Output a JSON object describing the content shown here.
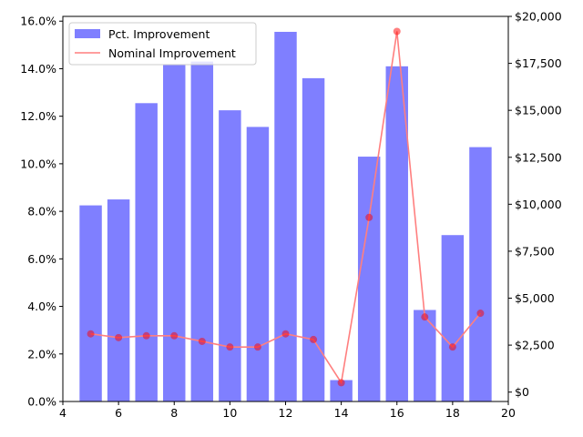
{
  "chart_data": {
    "type": "bar",
    "title": "",
    "xlabel": "",
    "ylabel": "",
    "y2label": "",
    "grid": false,
    "legend_placement": "top-left",
    "x": [
      5,
      6,
      7,
      8,
      9,
      10,
      11,
      12,
      13,
      14,
      15,
      16,
      17,
      18,
      19
    ],
    "xlim": [
      4,
      20
    ],
    "x_ticks": [
      4,
      6,
      8,
      10,
      12,
      14,
      16,
      18,
      20
    ],
    "ylim": [
      0,
      16.2
    ],
    "y_ticks": [
      0,
      2,
      4,
      6,
      8,
      10,
      12,
      14,
      16
    ],
    "y_tick_format": "percent_1dp",
    "y2lim": [
      -500,
      20000
    ],
    "y2_ticks": [
      0,
      2500,
      5000,
      7500,
      10000,
      12500,
      15000,
      17500,
      20000
    ],
    "y2_tick_format": "dollars_comma",
    "series": [
      {
        "name": "Pct. Improvement",
        "type": "bar",
        "axis": "left",
        "color": "#7f7fff",
        "values": [
          8.25,
          8.5,
          12.55,
          14.15,
          14.3,
          12.25,
          11.55,
          15.55,
          13.6,
          0.9,
          10.3,
          14.1,
          3.85,
          7.0,
          10.7
        ]
      },
      {
        "name": "Nominal Improvement",
        "type": "line",
        "axis": "right",
        "color": "#ff0000",
        "line_color": "#ff7f7f",
        "values": [
          3100,
          2900,
          3000,
          3000,
          2700,
          2400,
          2400,
          3100,
          2800,
          500,
          9300,
          19200,
          4000,
          2400,
          4200
        ]
      }
    ]
  }
}
